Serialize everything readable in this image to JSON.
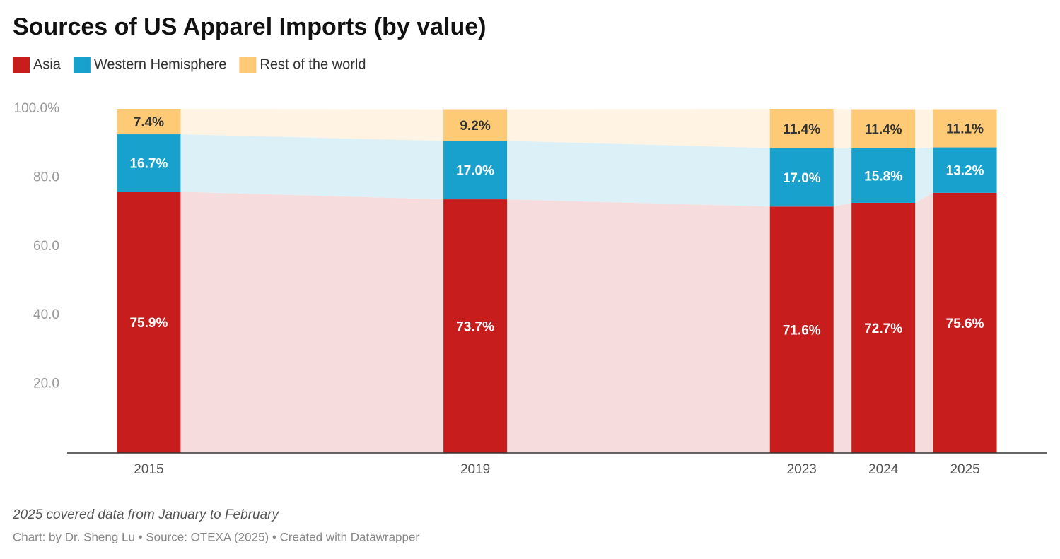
{
  "chart_data": {
    "type": "stacked-bar",
    "title": "Sources of US Apparel Imports (by value)",
    "note": "2025 covered data from January to February",
    "credit": "Chart: by Dr. Sheng Lu • Source: OTEXA (2025) • Created with Datawrapper",
    "x": [
      2015,
      2019,
      2023,
      2024,
      2025
    ],
    "xlim": [
      2014,
      2026
    ],
    "xticks": [
      2015,
      2019,
      2023,
      2024,
      2025
    ],
    "ylim": [
      0,
      100
    ],
    "yticks": [
      {
        "value": 20,
        "label": "20.0"
      },
      {
        "value": 40,
        "label": "40.0"
      },
      {
        "value": 60,
        "label": "60.0"
      },
      {
        "value": 80,
        "label": "80.0"
      },
      {
        "value": 100,
        "label": "100.0%"
      }
    ],
    "series": [
      {
        "name": "Asia",
        "color": "#c71e1d",
        "band_color": "#f7dcdd",
        "label_color": "#ffffff",
        "values": [
          75.9,
          73.7,
          71.6,
          72.7,
          75.6
        ],
        "value_labels": [
          "75.9%",
          "73.7%",
          "71.6%",
          "72.7%",
          "75.6%"
        ]
      },
      {
        "name": "Western Hemisphere",
        "color": "#18a1cd",
        "band_color": "#dcf0f7",
        "label_color": "#ffffff",
        "values": [
          16.7,
          17.0,
          17.0,
          15.8,
          13.2
        ],
        "value_labels": [
          "16.7%",
          "17.0%",
          "17.0%",
          "15.8%",
          "13.2%"
        ]
      },
      {
        "name": "Rest of the world",
        "color": "#ffca76",
        "band_color": "#fff3e3",
        "label_color": "#333333",
        "values": [
          7.4,
          9.2,
          11.4,
          11.4,
          11.1
        ],
        "value_labels": [
          "7.4%",
          "9.2%",
          "11.4%",
          "11.4%",
          "11.1%"
        ]
      }
    ]
  }
}
